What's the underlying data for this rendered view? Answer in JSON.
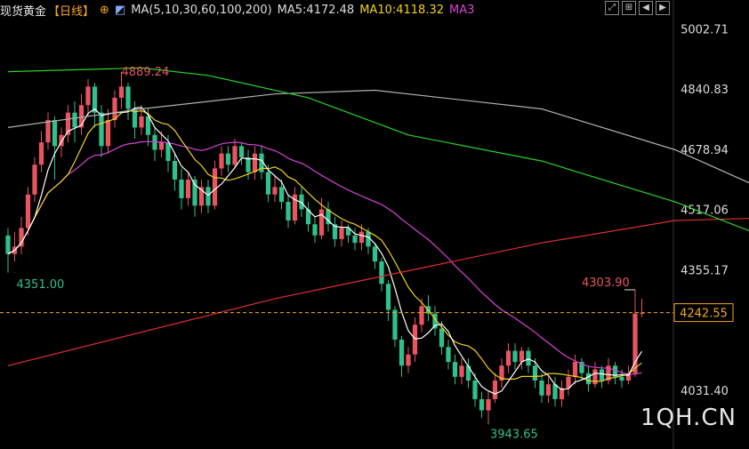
{
  "header": {
    "title": "现货黄金",
    "period": "【日线】",
    "ma_label": "MA(5,10,30,60,100,200)",
    "ma5": "MA5:4172.48",
    "ma10": "MA10:4118.32",
    "ma30": "MA3"
  },
  "colors": {
    "up": "#e8555f",
    "down": "#2fc08c",
    "ma5": "#ffffff",
    "ma10": "#f2d11f",
    "ma30": "#d844d8",
    "ma60": "#2bd22b",
    "ma100": "#b0b0b0",
    "ma200": "#e03030",
    "last": "#f5a623"
  },
  "toolbar": {
    "icons": [
      "expand-icon",
      "zoom-in-icon",
      "back-icon",
      "forward-icon"
    ]
  },
  "watermark": "1QH.CN",
  "chart_data": {
    "type": "candlestick",
    "y_ticks": [
      "5002.71",
      "4840.83",
      "4678.94",
      "4517.06",
      "4355.17",
      "4031.40"
    ],
    "ylim": [
      3900,
      5030
    ],
    "last_price": "4242.55",
    "annotations": {
      "high": "4889.24",
      "low": "3943.65",
      "start_low": "4351.00",
      "recent_high": "4303.90"
    },
    "candles": [
      [
        4450,
        4400,
        4470,
        4350
      ],
      [
        4400,
        4420,
        4460,
        4380
      ],
      [
        4420,
        4470,
        4500,
        4400
      ],
      [
        4470,
        4560,
        4580,
        4450
      ],
      [
        4560,
        4640,
        4660,
        4540
      ],
      [
        4640,
        4700,
        4730,
        4620
      ],
      [
        4700,
        4760,
        4780,
        4680
      ],
      [
        4760,
        4690,
        4770,
        4600
      ],
      [
        4690,
        4720,
        4740,
        4660
      ],
      [
        4720,
        4780,
        4800,
        4700
      ],
      [
        4780,
        4740,
        4810,
        4700
      ],
      [
        4740,
        4800,
        4830,
        4720
      ],
      [
        4800,
        4850,
        4870,
        4770
      ],
      [
        4850,
        4780,
        4860,
        4740
      ],
      [
        4780,
        4690,
        4800,
        4660
      ],
      [
        4690,
        4760,
        4790,
        4670
      ],
      [
        4760,
        4820,
        4840,
        4740
      ],
      [
        4820,
        4850,
        4889,
        4790
      ],
      [
        4850,
        4790,
        4860,
        4760
      ],
      [
        4790,
        4740,
        4810,
        4710
      ],
      [
        4740,
        4770,
        4800,
        4720
      ],
      [
        4770,
        4720,
        4790,
        4690
      ],
      [
        4720,
        4680,
        4740,
        4650
      ],
      [
        4680,
        4700,
        4730,
        4660
      ],
      [
        4700,
        4650,
        4720,
        4620
      ],
      [
        4650,
        4600,
        4670,
        4570
      ],
      [
        4600,
        4550,
        4630,
        4520
      ],
      [
        4550,
        4600,
        4620,
        4530
      ],
      [
        4600,
        4530,
        4610,
        4500
      ],
      [
        4530,
        4580,
        4600,
        4510
      ],
      [
        4580,
        4530,
        4600,
        4510
      ],
      [
        4530,
        4630,
        4650,
        4520
      ],
      [
        4630,
        4670,
        4690,
        4610
      ],
      [
        4670,
        4640,
        4690,
        4620
      ],
      [
        4640,
        4690,
        4710,
        4630
      ],
      [
        4690,
        4660,
        4700,
        4640
      ],
      [
        4660,
        4620,
        4680,
        4600
      ],
      [
        4620,
        4670,
        4690,
        4600
      ],
      [
        4670,
        4620,
        4690,
        4600
      ],
      [
        4620,
        4560,
        4640,
        4540
      ],
      [
        4560,
        4580,
        4610,
        4540
      ],
      [
        4580,
        4540,
        4600,
        4520
      ],
      [
        4540,
        4490,
        4560,
        4470
      ],
      [
        4490,
        4560,
        4580,
        4480
      ],
      [
        4560,
        4520,
        4580,
        4500
      ],
      [
        4520,
        4480,
        4540,
        4460
      ],
      [
        4480,
        4450,
        4500,
        4430
      ],
      [
        4450,
        4520,
        4550,
        4440
      ],
      [
        4520,
        4480,
        4540,
        4460
      ],
      [
        4480,
        4440,
        4500,
        4420
      ],
      [
        4440,
        4470,
        4490,
        4420
      ],
      [
        4470,
        4450,
        4480,
        4430
      ],
      [
        4450,
        4430,
        4470,
        4410
      ],
      [
        4430,
        4460,
        4480,
        4410
      ],
      [
        4460,
        4420,
        4470,
        4400
      ],
      [
        4420,
        4380,
        4430,
        4360
      ],
      [
        4380,
        4320,
        4390,
        4300
      ],
      [
        4320,
        4250,
        4330,
        4220
      ],
      [
        4250,
        4170,
        4260,
        4150
      ],
      [
        4170,
        4100,
        4180,
        4070
      ],
      [
        4100,
        4130,
        4150,
        4080
      ],
      [
        4130,
        4210,
        4230,
        4110
      ],
      [
        4210,
        4260,
        4280,
        4190
      ],
      [
        4260,
        4240,
        4290,
        4220
      ],
      [
        4240,
        4200,
        4260,
        4180
      ],
      [
        4200,
        4150,
        4220,
        4130
      ],
      [
        4150,
        4110,
        4170,
        4090
      ],
      [
        4110,
        4070,
        4130,
        4050
      ],
      [
        4070,
        4100,
        4120,
        4050
      ],
      [
        4100,
        4060,
        4120,
        4040
      ],
      [
        4060,
        4010,
        4080,
        3990
      ],
      [
        4010,
        3980,
        4030,
        3960
      ],
      [
        3980,
        4010,
        4030,
        3943
      ],
      [
        4010,
        4060,
        4080,
        4000
      ],
      [
        4060,
        4100,
        4120,
        4040
      ],
      [
        4100,
        4140,
        4160,
        4080
      ],
      [
        4140,
        4110,
        4160,
        4090
      ],
      [
        4110,
        4140,
        4150,
        4090
      ],
      [
        4140,
        4100,
        4150,
        4080
      ],
      [
        4100,
        4060,
        4120,
        4040
      ],
      [
        4060,
        4020,
        4080,
        4000
      ],
      [
        4020,
        4050,
        4070,
        4000
      ],
      [
        4050,
        4010,
        4070,
        3990
      ],
      [
        4010,
        4040,
        4060,
        3990
      ],
      [
        4040,
        4070,
        4090,
        4020
      ],
      [
        4070,
        4110,
        4130,
        4050
      ],
      [
        4110,
        4080,
        4120,
        4060
      ],
      [
        4080,
        4050,
        4100,
        4030
      ],
      [
        4050,
        4090,
        4110,
        4040
      ],
      [
        4090,
        4060,
        4100,
        4040
      ],
      [
        4060,
        4100,
        4120,
        4050
      ],
      [
        4100,
        4070,
        4110,
        4050
      ],
      [
        4070,
        4060,
        4090,
        4040
      ],
      [
        4060,
        4080,
        4100,
        4050
      ],
      [
        4080,
        4240,
        4303,
        4070
      ],
      [
        4240,
        4242,
        4280,
        4230
      ]
    ],
    "lines": {
      "ma200": [
        [
          0,
          4100
        ],
        [
          40,
          4280
        ],
        [
          80,
          4430
        ],
        [
          100,
          4490
        ],
        [
          120,
          4500
        ],
        [
          145,
          4500
        ]
      ],
      "ma100": [
        [
          0,
          4740
        ],
        [
          20,
          4790
        ],
        [
          40,
          4830
        ],
        [
          55,
          4840
        ],
        [
          80,
          4790
        ],
        [
          100,
          4680
        ],
        [
          120,
          4520
        ],
        [
          145,
          4390
        ]
      ],
      "ma60": [
        [
          0,
          4890
        ],
        [
          20,
          4900
        ],
        [
          30,
          4880
        ],
        [
          45,
          4820
        ],
        [
          60,
          4720
        ],
        [
          80,
          4650
        ],
        [
          100,
          4540
        ],
        [
          120,
          4400
        ],
        [
          135,
          4300
        ],
        [
          145,
          4260
        ]
      ]
    }
  }
}
